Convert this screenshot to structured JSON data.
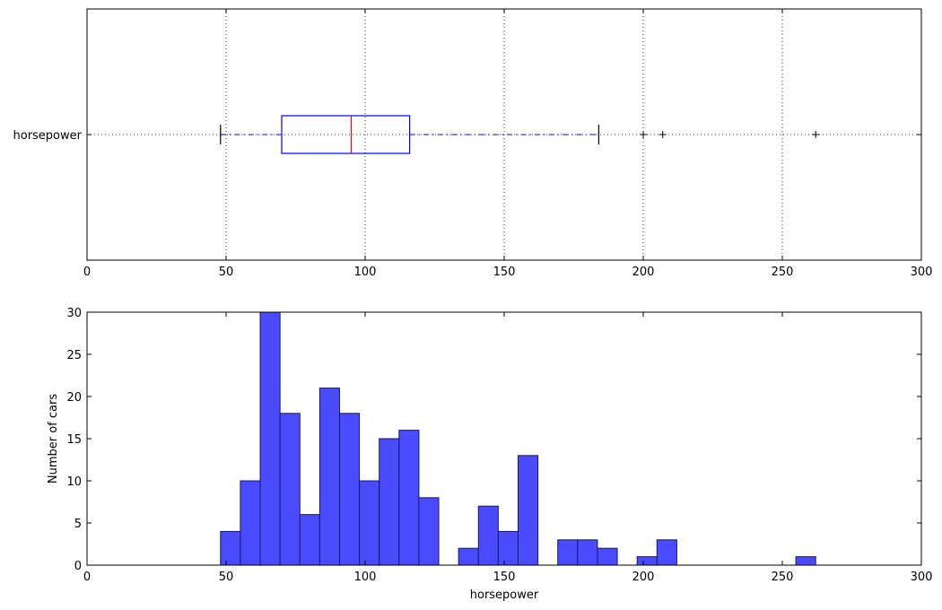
{
  "chart_data": [
    {
      "type": "box",
      "title": "",
      "xlabel": "",
      "ylabel": "",
      "xlim": [
        0,
        300
      ],
      "xticks": [
        0,
        50,
        100,
        150,
        200,
        250,
        300
      ],
      "category": "horsepower",
      "grid": true,
      "box": {
        "whisker_low": 48,
        "q1": 70,
        "median": 95,
        "q3": 116,
        "whisker_high": 184,
        "outliers": [
          200,
          207,
          262
        ]
      },
      "colors": {
        "box": "#0000ff",
        "median": "#ff0000",
        "whisker": "#0000ff",
        "caps": "#000000",
        "outliers": "#000000"
      }
    },
    {
      "type": "bar",
      "title": "",
      "xlabel": "horsepower",
      "ylabel": "Number of cars",
      "xlim": [
        0,
        300
      ],
      "ylim": [
        0,
        30
      ],
      "xticks": [
        0,
        50,
        100,
        150,
        200,
        250,
        300
      ],
      "yticks": [
        0,
        5,
        10,
        15,
        20,
        25,
        30
      ],
      "grid": false,
      "bin_edges": [
        48,
        55.133,
        62.267,
        69.4,
        76.533,
        83.667,
        90.8,
        97.933,
        105.067,
        112.2,
        119.333,
        126.467,
        133.6,
        140.733,
        147.867,
        155,
        162.133,
        169.267,
        176.4,
        183.533,
        190.667,
        197.8,
        204.933,
        212.067,
        219.2,
        226.333,
        233.467,
        240.6,
        247.733,
        254.867,
        262
      ],
      "counts": [
        4,
        10,
        30,
        18,
        6,
        21,
        18,
        10,
        15,
        16,
        8,
        0,
        2,
        7,
        4,
        13,
        0,
        3,
        3,
        2,
        0,
        1,
        3,
        0,
        0,
        0,
        0,
        0,
        0,
        1
      ],
      "colors": {
        "bar": "#4a4aff",
        "edge": "#1a1a5a"
      }
    }
  ]
}
